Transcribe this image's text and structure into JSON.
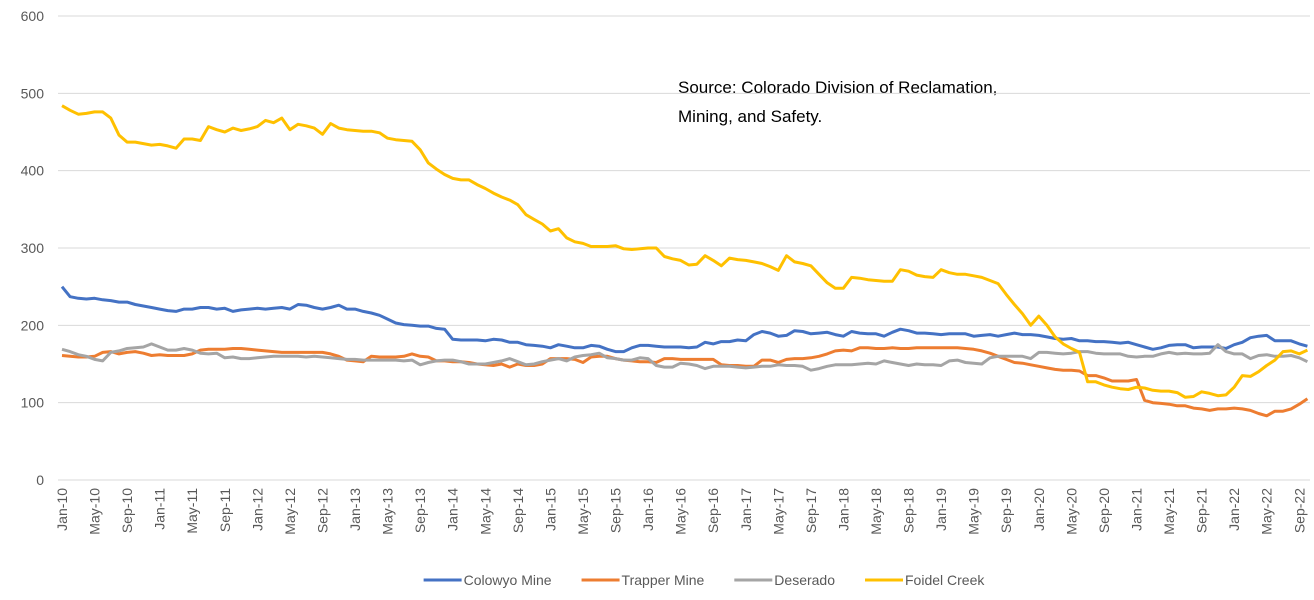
{
  "chart_data": {
    "type": "line",
    "annotation": [
      "Source:  Colorado Division of Reclamation,",
      "Mining, and Safety."
    ],
    "categories": [
      "Jan-10",
      null,
      null,
      null,
      "May-10",
      null,
      null,
      null,
      "Sep-10",
      null,
      null,
      null,
      "Jan-11",
      null,
      null,
      null,
      "May-11",
      null,
      null,
      null,
      "Sep-11",
      null,
      null,
      null,
      "Jan-12",
      null,
      null,
      null,
      "May-12",
      null,
      null,
      null,
      "Sep-12",
      null,
      null,
      null,
      "Jan-13",
      null,
      null,
      null,
      "May-13",
      null,
      null,
      null,
      "Sep-13",
      null,
      null,
      null,
      "Jan-14",
      null,
      null,
      null,
      "May-14",
      null,
      null,
      null,
      "Sep-14",
      null,
      null,
      null,
      "Jan-15",
      null,
      null,
      null,
      "May-15",
      null,
      null,
      null,
      "Sep-15",
      null,
      null,
      null,
      "Jan-16",
      null,
      null,
      null,
      "May-16",
      null,
      null,
      null,
      "Sep-16",
      null,
      null,
      null,
      "Jan-17",
      null,
      null,
      null,
      "May-17",
      null,
      null,
      null,
      "Sep-17",
      null,
      null,
      null,
      "Jan-18",
      null,
      null,
      null,
      "May-18",
      null,
      null,
      null,
      "Sep-18",
      null,
      null,
      null,
      "Jan-19",
      null,
      null,
      null,
      "May-19",
      null,
      null,
      null,
      "Sep-19",
      null,
      null,
      null,
      "Jan-20",
      null,
      null,
      null,
      "May-20",
      null,
      null,
      null,
      "Sep-20",
      null,
      null,
      null,
      "Jan-21",
      null,
      null,
      null,
      "May-21",
      null,
      null,
      null,
      "Sep-21",
      null,
      null,
      null,
      "Jan-22",
      null,
      null,
      null,
      "May-22",
      null,
      null,
      null,
      "Sep-22",
      null
    ],
    "series": [
      {
        "name": "Colowyo Mine",
        "color": "#4472c4",
        "values": [
          250,
          237,
          235,
          234,
          235,
          233,
          232,
          230,
          230,
          227,
          225,
          223,
          221,
          219,
          218,
          221,
          221,
          223,
          223,
          221,
          222,
          218,
          220,
          221,
          222,
          221,
          222,
          223,
          221,
          227,
          226,
          223,
          221,
          223,
          226,
          221,
          221,
          218,
          216,
          213,
          208,
          203,
          201,
          200,
          199,
          199,
          196,
          195,
          182,
          181,
          181,
          181,
          180,
          182,
          181,
          178,
          178,
          175,
          174,
          173,
          171,
          175,
          173,
          171,
          171,
          174,
          173,
          169,
          166,
          166,
          171,
          174,
          174,
          173,
          172,
          172,
          172,
          171,
          172,
          178,
          176,
          179,
          179,
          181,
          180,
          188,
          192,
          190,
          186,
          187,
          193,
          192,
          189,
          190,
          191,
          188,
          186,
          192,
          190,
          189,
          189,
          186,
          191,
          195,
          193,
          190,
          190,
          189,
          188,
          189,
          189,
          189,
          186,
          187,
          188,
          186,
          188,
          190,
          188,
          188,
          187,
          185,
          183,
          182,
          183,
          180,
          180,
          179,
          179,
          178,
          177,
          178,
          175,
          172,
          169,
          171,
          174,
          175,
          175,
          171,
          172,
          172,
          172,
          170,
          175,
          178,
          184,
          186,
          187,
          180,
          180,
          180,
          176,
          173
        ]
      },
      {
        "name": "Trapper Mine",
        "color": "#ed7d31",
        "values": [
          161,
          160,
          159,
          159,
          160,
          165,
          166,
          163,
          165,
          166,
          164,
          161,
          162,
          161,
          161,
          161,
          163,
          168,
          169,
          169,
          169,
          170,
          170,
          169,
          168,
          167,
          166,
          165,
          165,
          165,
          165,
          165,
          165,
          163,
          160,
          155,
          154,
          153,
          160,
          159,
          159,
          159,
          160,
          163,
          160,
          159,
          154,
          154,
          153,
          153,
          152,
          150,
          149,
          148,
          150,
          146,
          150,
          148,
          148,
          150,
          157,
          157,
          157,
          156,
          152,
          159,
          160,
          160,
          157,
          155,
          154,
          153,
          153,
          152,
          157,
          157,
          156,
          156,
          156,
          156,
          156,
          149,
          148,
          148,
          147,
          147,
          155,
          155,
          152,
          156,
          157,
          157,
          158,
          160,
          163,
          167,
          168,
          167,
          171,
          171,
          170,
          170,
          171,
          170,
          170,
          171,
          171,
          171,
          171,
          171,
          171,
          170,
          169,
          167,
          164,
          160,
          156,
          152,
          151,
          149,
          147,
          145,
          143,
          142,
          142,
          141,
          135,
          135,
          132,
          128,
          128,
          128,
          130,
          103,
          100,
          99,
          98,
          96,
          96,
          93,
          92,
          90,
          92,
          92,
          93,
          92,
          90,
          86,
          83,
          89,
          89,
          92,
          98,
          105
        ]
      },
      {
        "name": "Deserado",
        "color": "#a5a5a5",
        "values": [
          169,
          166,
          162,
          160,
          156,
          154,
          165,
          167,
          170,
          171,
          172,
          176,
          172,
          168,
          168,
          170,
          168,
          164,
          163,
          164,
          158,
          159,
          157,
          157,
          158,
          159,
          160,
          160,
          160,
          160,
          159,
          160,
          159,
          158,
          157,
          156,
          156,
          155,
          155,
          155,
          155,
          155,
          154,
          155,
          149,
          152,
          154,
          155,
          155,
          153,
          150,
          150,
          150,
          152,
          154,
          157,
          153,
          149,
          150,
          153,
          155,
          157,
          154,
          159,
          161,
          162,
          164,
          158,
          157,
          155,
          155,
          158,
          157,
          148,
          146,
          146,
          151,
          150,
          148,
          144,
          147,
          147,
          147,
          146,
          145,
          146,
          147,
          147,
          149,
          148,
          148,
          147,
          142,
          144,
          147,
          149,
          149,
          149,
          150,
          151,
          150,
          154,
          152,
          150,
          148,
          150,
          149,
          149,
          148,
          154,
          155,
          152,
          151,
          150,
          158,
          160,
          160,
          160,
          160,
          157,
          165,
          165,
          164,
          163,
          164,
          166,
          166,
          164,
          163,
          163,
          163,
          160,
          159,
          160,
          160,
          163,
          165,
          163,
          164,
          163,
          163,
          164,
          175,
          166,
          163,
          163,
          157,
          161,
          162,
          160,
          160,
          161,
          158,
          153
        ]
      },
      {
        "name": "Foidel Creek",
        "color": "#ffc000",
        "values": [
          484,
          478,
          473,
          474,
          476,
          476,
          468,
          446,
          437,
          437,
          435,
          433,
          434,
          432,
          429,
          441,
          441,
          439,
          457,
          453,
          450,
          455,
          452,
          454,
          457,
          465,
          462,
          468,
          453,
          460,
          458,
          455,
          447,
          461,
          455,
          453,
          452,
          451,
          451,
          449,
          442,
          440,
          439,
          438,
          427,
          410,
          402,
          395,
          390,
          388,
          388,
          382,
          377,
          371,
          366,
          362,
          356,
          343,
          337,
          331,
          322,
          325,
          313,
          308,
          306,
          302,
          302,
          302,
          303,
          299,
          298,
          299,
          300,
          300,
          289,
          286,
          284,
          278,
          279,
          290,
          284,
          277,
          287,
          285,
          284,
          282,
          280,
          276,
          271,
          290,
          282,
          280,
          277,
          266,
          255,
          248,
          248,
          262,
          261,
          259,
          258,
          257,
          257,
          272,
          270,
          265,
          263,
          262,
          272,
          268,
          266,
          266,
          264,
          262,
          258,
          254,
          240,
          227,
          215,
          200,
          212,
          200,
          185,
          176,
          170,
          165,
          127,
          127,
          123,
          120,
          118,
          117,
          120,
          119,
          116,
          115,
          115,
          113,
          107,
          108,
          114,
          112,
          109,
          110,
          120,
          135,
          134,
          140,
          148,
          155,
          166,
          167,
          163,
          168
        ]
      }
    ],
    "ylim": [
      0,
      600
    ],
    "yticks": [
      0,
      100,
      200,
      300,
      400,
      500,
      600
    ],
    "grid": true,
    "legend": "bottom"
  }
}
